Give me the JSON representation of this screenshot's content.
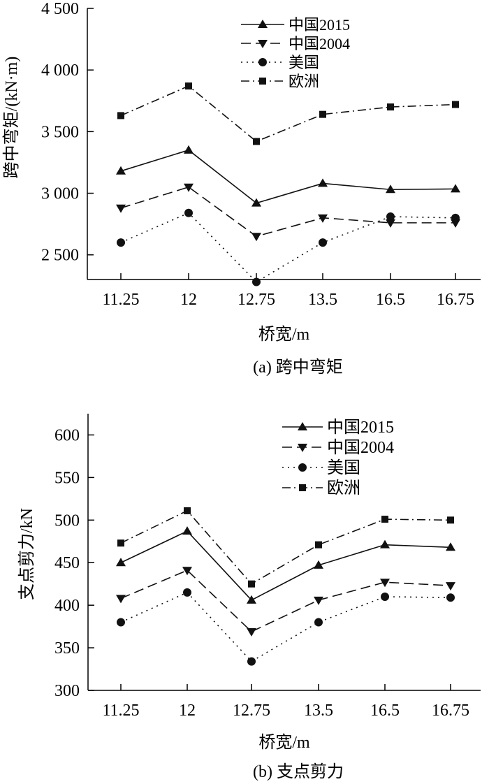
{
  "chart_data": [
    {
      "type": "line",
      "caption": "(a) 跨中弯矩",
      "xlabel": "桥宽/m",
      "ylabel": "跨中弯矩/(kN·m)",
      "categories": [
        "11.25",
        "12",
        "12.75",
        "13.5",
        "16.5",
        "16.75"
      ],
      "ylim": [
        2300,
        4500
      ],
      "yticks": [
        2500,
        3000,
        3500,
        4000,
        4500
      ],
      "ytick_labels": [
        "2 500",
        "3 000",
        "3 500",
        "4 000",
        "4 500"
      ],
      "legend_position": "top-center",
      "series": [
        {
          "name": "中国2015",
          "marker": "triangle-up",
          "dash": "solid",
          "values": [
            3180,
            3350,
            2920,
            3080,
            3030,
            3035
          ]
        },
        {
          "name": "中国2004",
          "marker": "triangle-down",
          "dash": "dashed",
          "values": [
            2880,
            3050,
            2650,
            2800,
            2760,
            2760
          ]
        },
        {
          "name": "美国",
          "marker": "circle",
          "dash": "dotted",
          "values": [
            2600,
            2840,
            2280,
            2600,
            2810,
            2800
          ]
        },
        {
          "name": "欧洲",
          "marker": "square",
          "dash": "dashdot",
          "values": [
            3630,
            3870,
            3420,
            3640,
            3700,
            3720
          ]
        }
      ]
    },
    {
      "type": "line",
      "caption": "(b) 支点剪力",
      "xlabel": "桥宽/m",
      "ylabel": "支点剪力/kN",
      "categories": [
        "11.25",
        "12",
        "12.75",
        "13.5",
        "16.5",
        "16.75"
      ],
      "ylim": [
        300,
        625
      ],
      "yticks": [
        300,
        350,
        400,
        450,
        500,
        550,
        600
      ],
      "ytick_labels": [
        "300",
        "350",
        "400",
        "450",
        "500",
        "550",
        "600"
      ],
      "legend_position": "top-center",
      "series": [
        {
          "name": "中国2015",
          "marker": "triangle-up",
          "dash": "solid",
          "values": [
            450,
            487,
            406,
            447,
            471,
            468
          ]
        },
        {
          "name": "中国2004",
          "marker": "triangle-down",
          "dash": "dashed",
          "values": [
            408,
            441,
            369,
            406,
            427,
            423
          ]
        },
        {
          "name": "美国",
          "marker": "circle",
          "dash": "dotted",
          "values": [
            380,
            415,
            334,
            380,
            410,
            409
          ]
        },
        {
          "name": "欧洲",
          "marker": "square",
          "dash": "dashdot",
          "values": [
            473,
            511,
            425,
            471,
            501,
            500
          ]
        }
      ]
    }
  ]
}
